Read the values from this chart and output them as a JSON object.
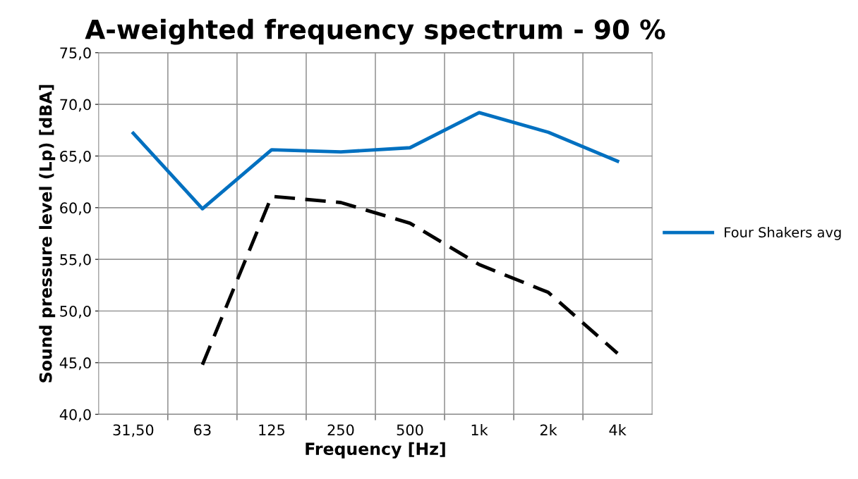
{
  "chart_data": {
    "type": "line",
    "title": "A-weighted frequency spectrum - 90 %",
    "xlabel": "Frequency [Hz]",
    "ylabel": "Sound pressure level (Lp) [dBA]",
    "categories": [
      "31,50",
      "63",
      "125",
      "250",
      "500",
      "1k",
      "2k",
      "4k"
    ],
    "series": [
      {
        "name": "Four Shakers avg",
        "color": "#0070c0",
        "line_style": "solid",
        "values": [
          67.2,
          59.9,
          65.6,
          65.4,
          65.8,
          69.2,
          67.3,
          64.5
        ]
      },
      {
        "color": "#000000",
        "line_style": "dashed",
        "values": [
          null,
          44.8,
          61.1,
          60.5,
          58.5,
          54.5,
          51.8,
          45.9
        ]
      }
    ],
    "ylim": [
      40,
      75
    ],
    "yticks": [
      {
        "value": 40,
        "label": "40,0"
      },
      {
        "value": 45,
        "label": "45,0"
      },
      {
        "value": 50,
        "label": "50,0"
      },
      {
        "value": 55,
        "label": "55,0"
      },
      {
        "value": 60,
        "label": "60,0"
      },
      {
        "value": 65,
        "label": "65,0"
      },
      {
        "value": 70,
        "label": "70,0"
      },
      {
        "value": 75,
        "label": "75,0"
      }
    ],
    "grid": true,
    "legend": "right",
    "marker": "none"
  }
}
